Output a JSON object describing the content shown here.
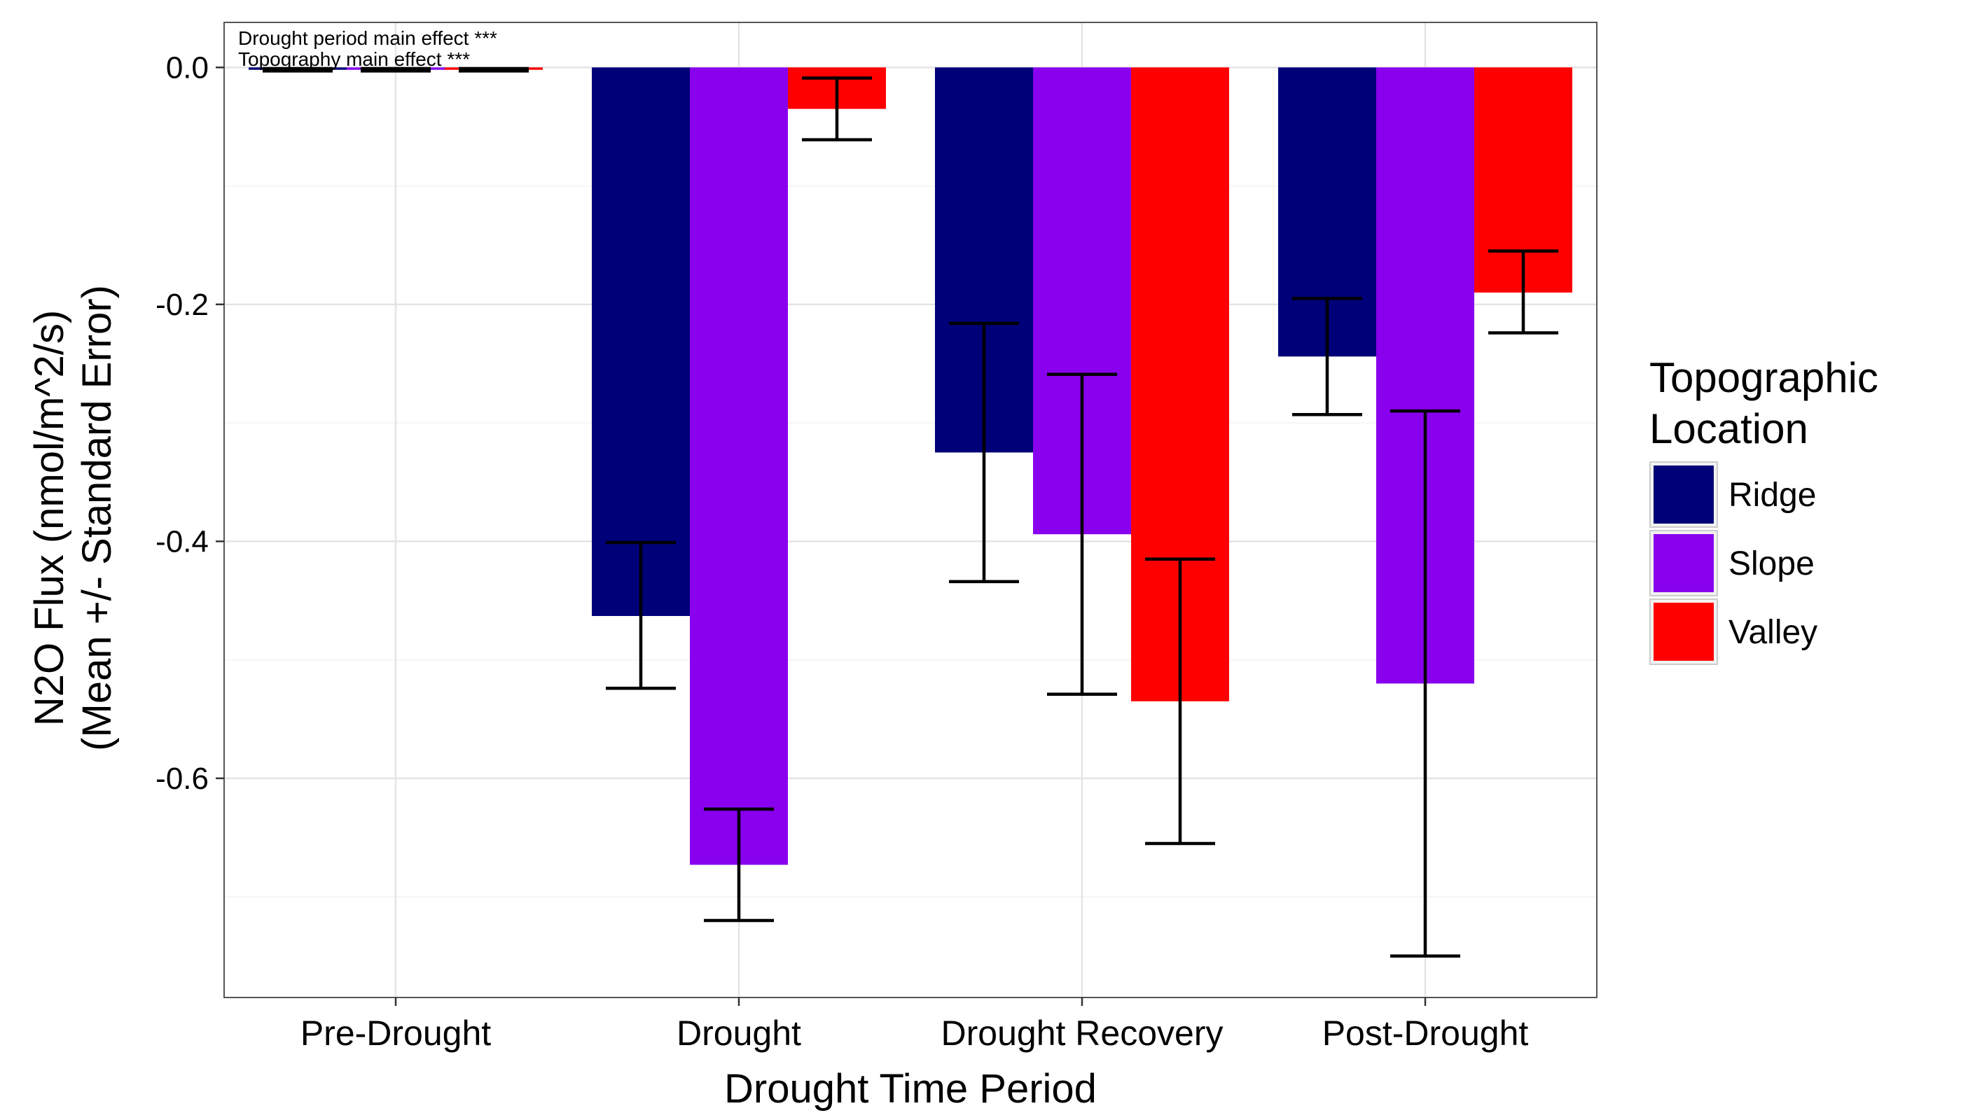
{
  "chart_data": {
    "type": "bar",
    "xlabel": "Drought Time Period",
    "ylabel_lines": [
      "N2O Flux (nmol/m^2/s)",
      "(Mean +/- Standard Error)"
    ],
    "categories": [
      "Pre-Drought",
      "Drought",
      "Drought Recovery",
      "Post-Drought"
    ],
    "series": [
      {
        "name": "Ridge",
        "color": "#000078",
        "values": [
          -0.002,
          -0.463,
          -0.325,
          -0.244
        ],
        "err_low": [
          -0.003,
          -0.524,
          -0.434,
          -0.293
        ],
        "err_high": [
          -0.001,
          -0.401,
          -0.216,
          -0.195
        ]
      },
      {
        "name": "Slope",
        "color": "#8800EE",
        "values": [
          -0.002,
          -0.673,
          -0.394,
          -0.52
        ],
        "err_low": [
          -0.003,
          -0.72,
          -0.529,
          -0.75
        ],
        "err_high": [
          -0.001,
          -0.626,
          -0.259,
          -0.29
        ]
      },
      {
        "name": "Valley",
        "color": "#FF0000",
        "values": [
          -0.002,
          -0.035,
          -0.535,
          -0.19
        ],
        "err_low": [
          -0.003,
          -0.061,
          -0.655,
          -0.224
        ],
        "err_high": [
          -0.001,
          -0.009,
          -0.415,
          -0.155
        ]
      }
    ],
    "ylim": [
      -0.785,
      0.038
    ],
    "yticks": [
      0.0,
      -0.2,
      -0.4,
      -0.6
    ],
    "ytick_labels": [
      "0.0",
      "-0.2",
      "-0.4",
      "-0.6"
    ],
    "annotations": [
      "Drought period main effect  ***",
      "Topography main effect  ***"
    ],
    "legend": {
      "title_lines": [
        "Topographic",
        "Location"
      ],
      "position": "right",
      "entries": [
        "Ridge",
        "Slope",
        "Valley"
      ]
    },
    "grid": true
  }
}
